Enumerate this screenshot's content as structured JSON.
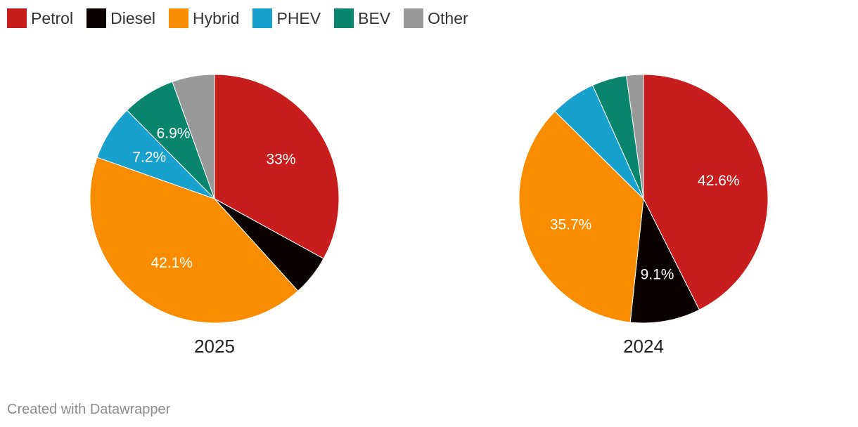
{
  "legend": [
    {
      "name": "Petrol",
      "color": "#c71e1d"
    },
    {
      "name": "Diesel",
      "color": "#0a0000"
    },
    {
      "name": "Hybrid",
      "color": "#fa8c00"
    },
    {
      "name": "PHEV",
      "color": "#18a1cd"
    },
    {
      "name": "BEV",
      "color": "#09856e"
    },
    {
      "name": "Other",
      "color": "#999999"
    }
  ],
  "chart_data": [
    {
      "type": "pie",
      "title": "2025",
      "categories": [
        "Petrol",
        "Diesel",
        "Hybrid",
        "PHEV",
        "BEV",
        "Other"
      ],
      "values": [
        33.0,
        5.3,
        42.1,
        7.2,
        6.9,
        5.5
      ],
      "labels": [
        "33%",
        "",
        "42.1%",
        "7.2%",
        "6.9%",
        ""
      ]
    },
    {
      "type": "pie",
      "title": "2024",
      "categories": [
        "Petrol",
        "Diesel",
        "Hybrid",
        "PHEV",
        "BEV",
        "Other"
      ],
      "values": [
        42.6,
        9.1,
        35.7,
        5.9,
        4.5,
        2.2
      ],
      "labels": [
        "42.6%",
        "9.1%",
        "35.7%",
        "",
        "",
        ""
      ]
    }
  ],
  "footer": {
    "credit": "Created with Datawrapper"
  }
}
